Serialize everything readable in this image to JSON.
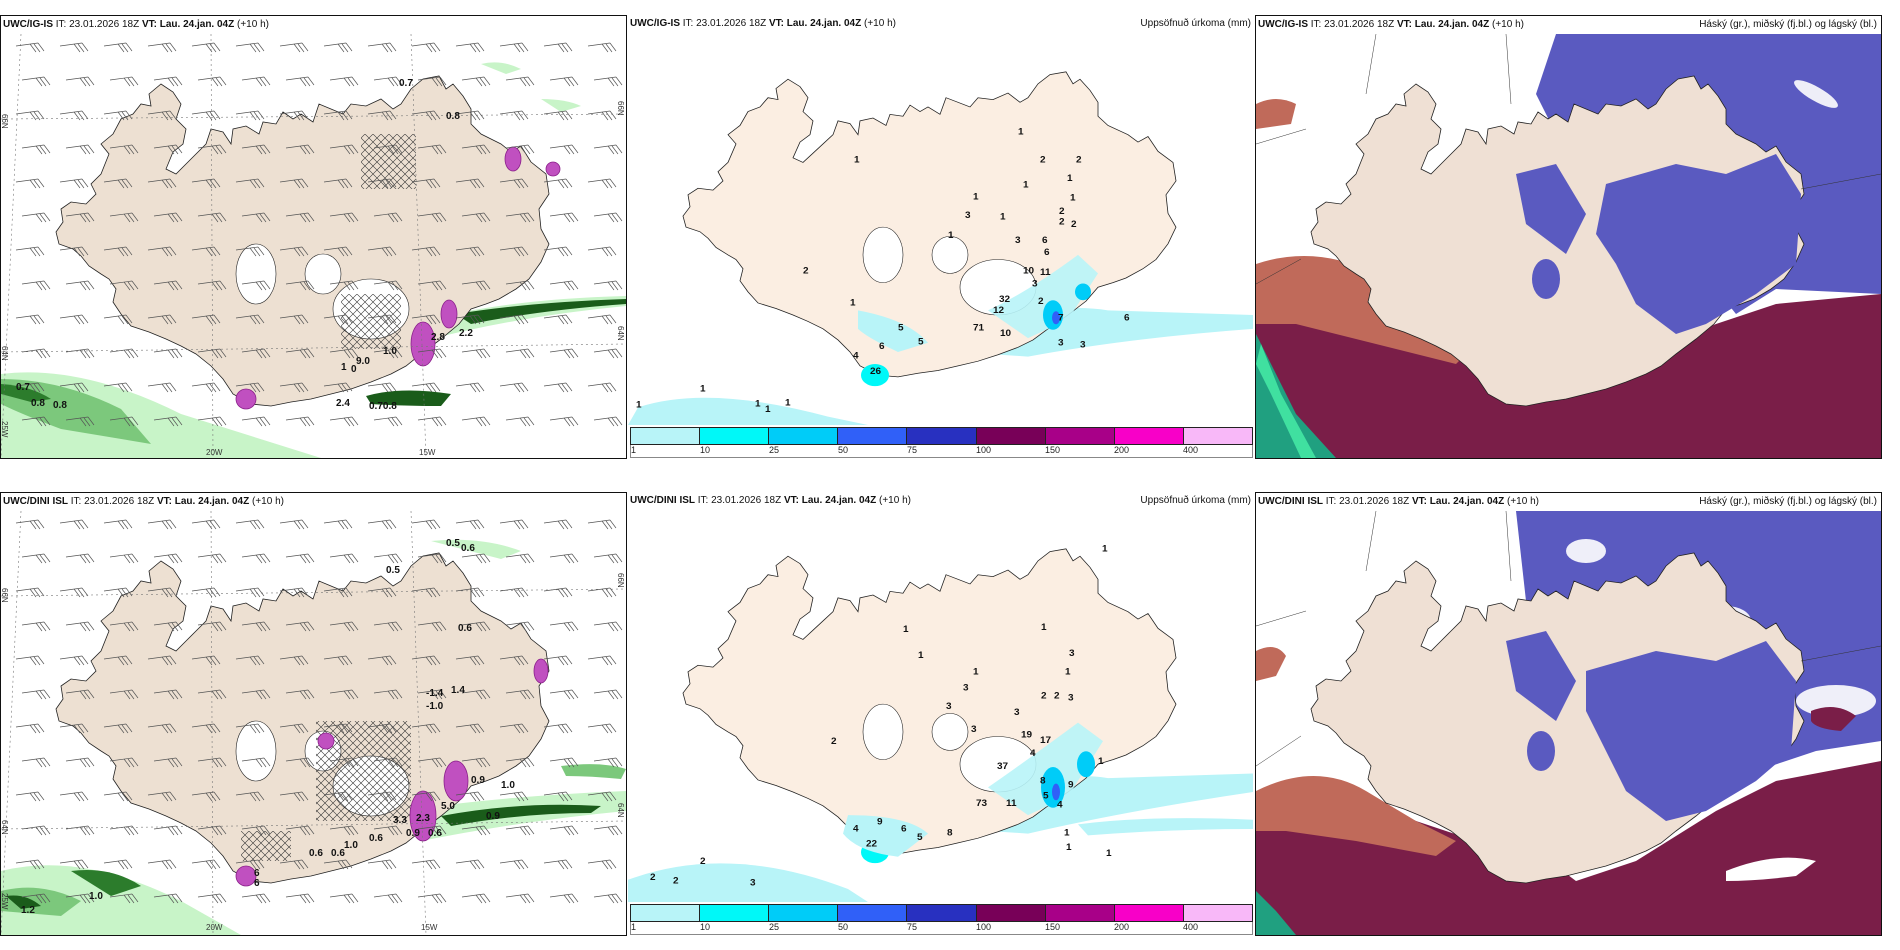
{
  "panels": [
    {
      "id": "ig-is-wind",
      "model": "UWC/IG-IS",
      "it_label": "IT:",
      "it_value": "23.01.2026 18Z",
      "vt_label": "VT:",
      "vt_value": "Lau. 24.jan. 04Z",
      "lead": "(+10 h)",
      "right_title": "",
      "lat_labels": [
        "66N",
        "64N",
        "66N",
        "64N"
      ],
      "lon_labels": [
        "20W",
        "15W",
        "25W"
      ],
      "values": [
        "0.7",
        "0.8",
        "2.8",
        "2.2",
        "1.0",
        "9.0",
        "1",
        "0",
        "2.4",
        "0.70.8",
        "0.7",
        "0.8",
        "0.8"
      ]
    },
    {
      "id": "ig-is-precip",
      "model": "UWC/IG-IS",
      "it_label": "IT:",
      "it_value": "23.01.2026 18Z",
      "vt_label": "VT:",
      "vt_value": "Lau. 24.jan. 04Z",
      "lead": "(+10 h)",
      "right_title": "Uppsöfnuð úrkoma (mm)",
      "values": [
        "1",
        "1",
        "2",
        "2",
        "1",
        "1",
        "1",
        "1",
        "3",
        "1",
        "2",
        "2",
        "2",
        "1",
        "3",
        "6",
        "6",
        "10",
        "11",
        "3",
        "32",
        "12",
        "2",
        "71",
        "10",
        "7",
        "6",
        "3",
        "3",
        "1",
        "5",
        "5",
        "6",
        "4",
        "26",
        "1",
        "1",
        "1",
        "1",
        "1",
        "2"
      ]
    },
    {
      "id": "ig-is-cloud",
      "model": "UWC/IG-IS",
      "it_label": "IT:",
      "it_value": "23.01.2026 18Z",
      "vt_label": "VT:",
      "vt_value": "Lau. 24.jan. 04Z",
      "lead": "(+10 h)",
      "right_title": "Háský (gr.), miðský (fj.bl.) og lágský (bl.)"
    },
    {
      "id": "dini-wind",
      "model": "UWC/DINI ISL",
      "it_label": "IT:",
      "it_value": "23.01.2026 18Z",
      "vt_label": "VT:",
      "vt_value": "Lau. 24.jan. 04Z",
      "lead": "(+10 h)",
      "right_title": "",
      "lat_labels": [
        "66N",
        "64N",
        "66N",
        "64N"
      ],
      "lon_labels": [
        "20W",
        "15W",
        "25W"
      ],
      "values": [
        "0.5",
        "0.6",
        "0.5",
        "0.6",
        "-1.4",
        "1.4",
        "-1.0",
        "0.9",
        "1.0",
        "5.0",
        "0.9",
        "3.3",
        "2.3",
        "0.9",
        "0.6",
        "0.6",
        "1.0",
        "0.6",
        "0.6",
        "1.0",
        "1.2",
        "6",
        "6"
      ]
    },
    {
      "id": "dini-precip",
      "model": "UWC/DINI ISL",
      "it_label": "IT:",
      "it_value": "23.01.2026 18Z",
      "vt_label": "VT:",
      "vt_value": "Lau. 24.jan. 04Z",
      "lead": "(+10 h)",
      "right_title": "Uppsöfnuð úrkoma (mm)",
      "values": [
        "1",
        "1",
        "1",
        "1",
        "3",
        "1",
        "1",
        "3",
        "2",
        "2",
        "3",
        "3",
        "3",
        "3",
        "2",
        "19",
        "17",
        "4",
        "37",
        "1",
        "8",
        "9",
        "5",
        "4",
        "73",
        "11",
        "9",
        "4",
        "6",
        "5",
        "8",
        "22",
        "1",
        "1",
        "1",
        "2",
        "2",
        "2",
        "3"
      ]
    },
    {
      "id": "dini-cloud",
      "model": "UWC/DINI ISL",
      "it_label": "IT:",
      "it_value": "23.01.2026 18Z",
      "vt_label": "VT:",
      "vt_value": "Lau. 24.jan. 04Z",
      "lead": "(+10 h)",
      "right_title": "Háský (gr.), miðský (fj.bl.) og lágský (bl.)"
    }
  ],
  "colorbar": {
    "ticks": [
      "1",
      "10",
      "25",
      "50",
      "75",
      "100",
      "150",
      "200",
      "400"
    ],
    "colors": [
      "#b8f4f8",
      "#00f8f8",
      "#00ccf8",
      "#3060f8",
      "#2830c0",
      "#780058",
      "#a80088",
      "#f800c8",
      "#f8b8f8"
    ]
  },
  "colors": {
    "land": "#f2e2d2",
    "land_precip": "#fbeee2",
    "coast": "#222222",
    "wind_green_light": "#c8f4c8",
    "wind_green_mid": "#7cc87c",
    "wind_green_dark": "#1a5c1a",
    "precip_light": "#b8f4f8",
    "high_cloud": "#20a080",
    "mid_cloud": "#5a5ac0",
    "low_cloud": "#7a1e48",
    "low_cloud_edge": "#c06a5a",
    "magenta": "#c050c0"
  }
}
